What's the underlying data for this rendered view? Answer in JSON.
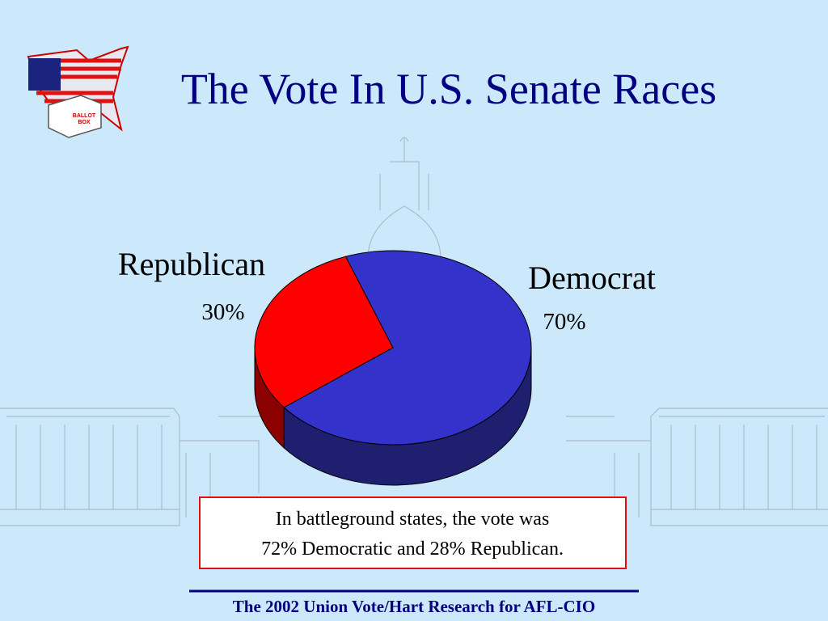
{
  "chart_data": {
    "type": "pie",
    "title": "The Vote In U.S. Senate Races",
    "categories": [
      "Republican",
      "Democrat"
    ],
    "values": [
      30,
      70
    ],
    "value_labels": [
      "30%",
      "70%"
    ],
    "colors": [
      "#ff0000",
      "#3333cc"
    ],
    "side_colors": [
      "#8b0000",
      "#1f1f70"
    ],
    "annotation": [
      "In battleground states, the vote was",
      "72% Democratic and 28% Republican."
    ],
    "source": "The 2002 Union Vote/Hart Research for AFL-CIO",
    "icon_text": [
      "BALLOT",
      "BOX"
    ]
  }
}
